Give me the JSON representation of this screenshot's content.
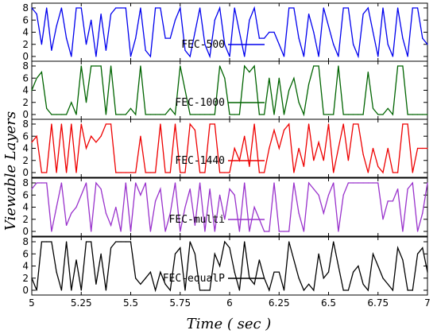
{
  "chart_data": {
    "type": "line",
    "xlabel": "Time ( sec )",
    "ylabel": "Viewable Layers",
    "xlim": [
      5,
      7
    ],
    "ylim": [
      0,
      8
    ],
    "x_ticks": [
      "5",
      "5.25",
      "5.5",
      "5.75",
      "6",
      "6.25",
      "6.5",
      "6.75",
      "7"
    ],
    "y_ticks": [
      "0",
      "2",
      "4",
      "6",
      "8"
    ],
    "grid": false,
    "legend_placement": "inside-center-right of each panel",
    "x": [
      5.0,
      5.025,
      5.05,
      5.075,
      5.1,
      5.125,
      5.15,
      5.175,
      5.2,
      5.225,
      5.25,
      5.275,
      5.3,
      5.325,
      5.35,
      5.375,
      5.4,
      5.425,
      5.45,
      5.475,
      5.5,
      5.525,
      5.55,
      5.575,
      5.6,
      5.625,
      5.65,
      5.675,
      5.7,
      5.725,
      5.75,
      5.775,
      5.8,
      5.825,
      5.85,
      5.875,
      5.9,
      5.925,
      5.95,
      5.975,
      6.0,
      6.025,
      6.05,
      6.075,
      6.1,
      6.125,
      6.15,
      6.175,
      6.2,
      6.225,
      6.25,
      6.275,
      6.3,
      6.325,
      6.35,
      6.375,
      6.4,
      6.425,
      6.45,
      6.475,
      6.5,
      6.525,
      6.55,
      6.575,
      6.6,
      6.625,
      6.65,
      6.675,
      6.7,
      6.725,
      6.75,
      6.775,
      6.8,
      6.825,
      6.85,
      6.875,
      6.9,
      6.925,
      6.95,
      6.975,
      7.0
    ],
    "series": [
      {
        "name": "FEC-500",
        "color": "#0000ee",
        "values": [
          8,
          7,
          2,
          8,
          1,
          5,
          8,
          3,
          0,
          8,
          8,
          2,
          6,
          0,
          7,
          1,
          7,
          8,
          8,
          8,
          0,
          3,
          8,
          1,
          0,
          8,
          8,
          3,
          3,
          6,
          8,
          1,
          0,
          4,
          8,
          2,
          0,
          6,
          8,
          2,
          0,
          8,
          4,
          0,
          6,
          8,
          3,
          3,
          4,
          4,
          2,
          0,
          8,
          8,
          3,
          0,
          7,
          4,
          0,
          8,
          5,
          2,
          0,
          8,
          8,
          2,
          0,
          7,
          8,
          4,
          0,
          8,
          2,
          0,
          8,
          3,
          0,
          8,
          8,
          3,
          2
        ]
      },
      {
        "name": "FEC-1000",
        "color": "#006400",
        "values": [
          4,
          6,
          7,
          1,
          0,
          0,
          0,
          0,
          2,
          0,
          8,
          2,
          8,
          8,
          8,
          0,
          8,
          0,
          0,
          0,
          1,
          0,
          8,
          0,
          0,
          0,
          0,
          0,
          1,
          0,
          8,
          4,
          0,
          0,
          0,
          0,
          0,
          0,
          8,
          6,
          0,
          0,
          0,
          8,
          7,
          8,
          0,
          0,
          6,
          0,
          6,
          0,
          4,
          6,
          2,
          0,
          5,
          8,
          8,
          0,
          0,
          0,
          8,
          0,
          0,
          0,
          0,
          0,
          7,
          1,
          0,
          0,
          1,
          0,
          8,
          8,
          0,
          0,
          0,
          0,
          0
        ]
      },
      {
        "name": "FEC-1440",
        "color": "#ee0000",
        "values": [
          5,
          6,
          0,
          0,
          8,
          0,
          8,
          0,
          8,
          0,
          8,
          4,
          6,
          5,
          6,
          8,
          8,
          0,
          0,
          0,
          0,
          0,
          6,
          0,
          0,
          0,
          8,
          0,
          0,
          8,
          0,
          0,
          8,
          7,
          0,
          0,
          8,
          8,
          0,
          0,
          0,
          4,
          2,
          6,
          1,
          8,
          0,
          0,
          4,
          7,
          4,
          7,
          8,
          0,
          4,
          1,
          8,
          2,
          5,
          2,
          8,
          0,
          4,
          8,
          2,
          8,
          8,
          3,
          0,
          4,
          1,
          0,
          4,
          0,
          0,
          8,
          8,
          0,
          4,
          4,
          4
        ]
      },
      {
        "name": "FEC-multi",
        "color": "#9932cc",
        "values": [
          7,
          8,
          8,
          8,
          0,
          4,
          8,
          1,
          3,
          4,
          6,
          8,
          0,
          8,
          7,
          3,
          1,
          4,
          0,
          8,
          0,
          8,
          6,
          8,
          0,
          5,
          7,
          0,
          3,
          8,
          0,
          4,
          7,
          1,
          8,
          0,
          7,
          0,
          6,
          2,
          7,
          6,
          0,
          8,
          0,
          4,
          2,
          0,
          0,
          8,
          0,
          0,
          0,
          8,
          3,
          0,
          8,
          7,
          6,
          3,
          6,
          8,
          0,
          6,
          8,
          8,
          8,
          8,
          8,
          8,
          8,
          2,
          5,
          5,
          7,
          0,
          7,
          8,
          0,
          3,
          8
        ]
      },
      {
        "name": "FEC-equalP",
        "color": "#000000",
        "values": [
          2,
          0,
          8,
          8,
          8,
          3,
          0,
          8,
          0,
          5,
          0,
          8,
          8,
          1,
          6,
          0,
          7,
          8,
          8,
          8,
          8,
          2,
          1,
          2,
          3,
          0,
          3,
          1,
          0,
          6,
          7,
          0,
          8,
          6,
          0,
          0,
          0,
          6,
          4,
          8,
          7,
          3,
          0,
          8,
          2,
          1,
          5,
          2,
          0,
          3,
          3,
          0,
          8,
          5,
          2,
          0,
          1,
          0,
          6,
          2,
          3,
          8,
          4,
          0,
          0,
          3,
          4,
          1,
          0,
          6,
          4,
          2,
          1,
          0,
          7,
          5,
          0,
          0,
          6,
          7,
          3
        ]
      }
    ]
  }
}
